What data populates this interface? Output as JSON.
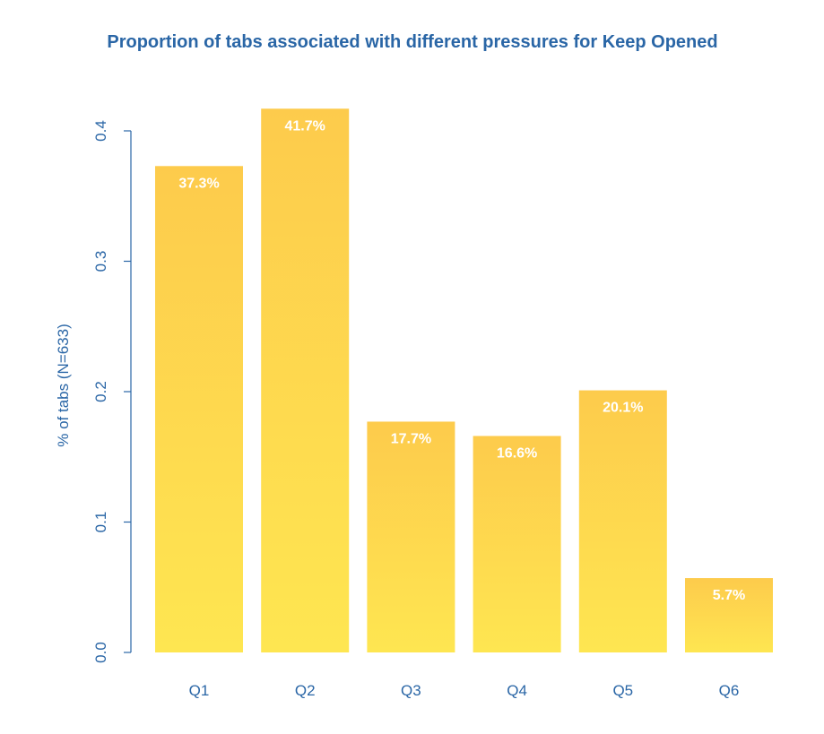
{
  "chart_data": {
    "type": "bar",
    "title": "Proportion of tabs associated with different pressures for Keep Opened",
    "xlabel": "",
    "ylabel": "% of tabs (N=633)",
    "categories": [
      "Q1",
      "Q2",
      "Q3",
      "Q4",
      "Q5",
      "Q6"
    ],
    "values": [
      0.373,
      0.417,
      0.177,
      0.166,
      0.201,
      0.057
    ],
    "value_labels": [
      "37.3%",
      "41.7%",
      "17.7%",
      "16.6%",
      "20.1%",
      "5.7%"
    ],
    "ylim": [
      0,
      0.4
    ],
    "yticks": [
      "0.0",
      "0.1",
      "0.2",
      "0.3",
      "0.4"
    ],
    "ytick_values": [
      0,
      0.1,
      0.2,
      0.3,
      0.4
    ],
    "grid": false,
    "legend": "none",
    "colors": {
      "title": "#2a66a6",
      "axis": "#2a66a6",
      "bar_top": "#fdcb4c",
      "bar_bottom": "#fee651",
      "bar_label": "#ffffff"
    }
  }
}
